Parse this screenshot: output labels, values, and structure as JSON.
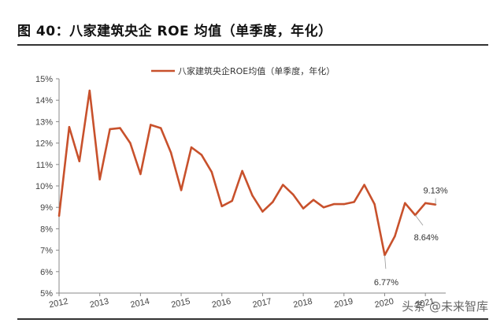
{
  "title": "图 40：八家建筑央企 ROE 均值（单季度，年化）",
  "watermark": "头条 @未来智库",
  "chart_data": {
    "type": "line",
    "legend": "八家建筑央企ROE均值（单季度，年化）",
    "legend_position": "top-center",
    "grid": false,
    "ylim": [
      5,
      15
    ],
    "y_ticks": [
      "5%",
      "6%",
      "7%",
      "8%",
      "9%",
      "10%",
      "11%",
      "12%",
      "13%",
      "14%",
      "15%"
    ],
    "x_ticks": [
      "2012",
      "2013",
      "2014",
      "2015",
      "2016",
      "2017",
      "2018",
      "2019",
      "2020",
      "2021"
    ],
    "x_start": 2012.0,
    "x_step": 0.25,
    "series": [
      {
        "name": "八家建筑央企ROE均值（单季度，年化）",
        "color": "#C8512C",
        "values": [
          8.6,
          12.75,
          11.15,
          14.45,
          10.3,
          12.65,
          12.7,
          12.0,
          10.55,
          12.85,
          12.7,
          11.55,
          9.8,
          11.8,
          11.45,
          10.65,
          9.05,
          9.3,
          10.7,
          9.55,
          8.8,
          9.25,
          10.05,
          9.6,
          8.95,
          9.35,
          9.0,
          9.15,
          9.15,
          9.25,
          10.05,
          9.15,
          6.77,
          7.65,
          9.2,
          8.64,
          9.2,
          9.13
        ]
      }
    ],
    "annotations": [
      {
        "text": "9.13%",
        "index": 37
      },
      {
        "text": "8.64%",
        "index": 35
      },
      {
        "text": "6.77%",
        "index": 32
      }
    ]
  }
}
